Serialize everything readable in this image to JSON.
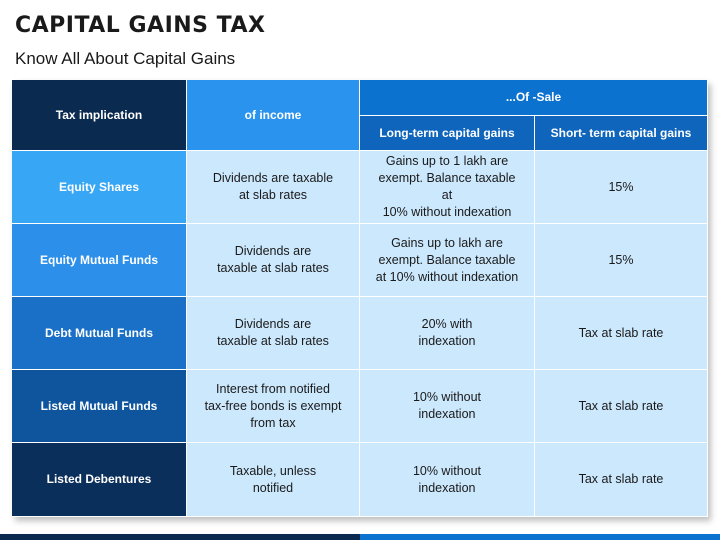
{
  "title": "CAPITAL GAINS TAX",
  "subtitle": "Know All About Capital Gains",
  "colors": {
    "header_dark": "#0b2a4f",
    "header_income": "#2a93ee",
    "header_sale": "#0c72d0",
    "cell_light": "#cce8fd"
  },
  "table": {
    "header": {
      "tax_implication": "Tax implication",
      "of_income": "of income",
      "of_sale": "...Of -Sale",
      "long_term": "Long-term capital gains",
      "short_term": "Short- term capital gains"
    },
    "rows": [
      {
        "label": "Equity Shares",
        "income": "Dividends are taxable\nat slab rates",
        "long_term": "Gains up to 1 lakh are\nexempt. Balance taxable at\n10% without indexation",
        "short_term": "15%"
      },
      {
        "label": "Equity Mutual Funds",
        "income": "Dividends are\ntaxable at slab rates",
        "long_term": "Gains up to lakh are\nexempt. Balance taxable\nat 10% without indexation",
        "short_term": "15%"
      },
      {
        "label": "Debt Mutual Funds",
        "income": "Dividends are\ntaxable at slab rates",
        "long_term": "20% with\nindexation",
        "short_term": "Tax at slab rate"
      },
      {
        "label": "Listed Mutual Funds",
        "income": "Interest from notified\ntax-free bonds is exempt\nfrom tax",
        "long_term": "10% without\nindexation",
        "short_term": "Tax at slab rate"
      },
      {
        "label": "Listed Debentures",
        "income": "Taxable, unless\nnotified",
        "long_term": "10% without\nindexation",
        "short_term": "Tax at slab rate"
      }
    ]
  }
}
